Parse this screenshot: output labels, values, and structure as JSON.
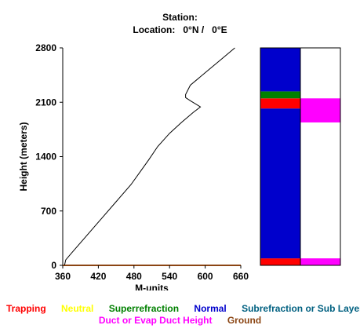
{
  "header": {
    "station_line": "Station:",
    "location_line": "Location:   0°N /   0°E"
  },
  "chart_data": {
    "type": "line",
    "title": "",
    "xlabel": "M-units",
    "ylabel": "Height (meters)",
    "xlim": [
      360,
      660
    ],
    "ylim": [
      0,
      2800
    ],
    "xticks": [
      "360",
      "420",
      "480",
      "540",
      "600",
      "660"
    ],
    "yticks": [
      "0",
      "700",
      "1400",
      "2100",
      "2800"
    ],
    "series": [
      {
        "color": "#000000",
        "x": [
          363,
          365,
          375,
          400,
          425,
          450,
          475,
          490,
          505,
          520,
          540,
          560,
          580,
          592,
          575,
          567,
          567,
          575,
          600,
          625,
          650
        ],
        "y": [
          0,
          70,
          160,
          380,
          600,
          820,
          1040,
          1200,
          1360,
          1530,
          1700,
          1840,
          1970,
          2040,
          2120,
          2160,
          2200,
          2320,
          2480,
          2640,
          2800
        ]
      }
    ],
    "ground": {
      "height": 0,
      "color": "#8b4513"
    },
    "bars": {
      "ylim": [
        0,
        2800
      ],
      "left_column": [
        {
          "from": 0,
          "to": 90,
          "type": "Trapping"
        },
        {
          "from": 90,
          "to": 2020,
          "type": "Normal"
        },
        {
          "from": 2020,
          "to": 2150,
          "type": "Trapping"
        },
        {
          "from": 2150,
          "to": 2240,
          "type": "Superrefraction"
        },
        {
          "from": 2240,
          "to": 2800,
          "type": "Normal"
        }
      ],
      "right_column": [
        {
          "from": 0,
          "to": 90,
          "type": "Duct or Evap Duct Height"
        },
        {
          "from": 1840,
          "to": 2150,
          "type": "Duct or Evap Duct Height"
        }
      ]
    }
  },
  "legend": {
    "row1": [
      {
        "label": "Trapping",
        "color": "#ff0000"
      },
      {
        "label": "Neutral",
        "color": "#ffff00"
      },
      {
        "label": "Superrefraction",
        "color": "#008000"
      },
      {
        "label": "Normal",
        "color": "#0000cc"
      },
      {
        "label": "Subrefraction or Sub Layer",
        "color": "#006080"
      }
    ],
    "row2": [
      {
        "label": "Duct or Evap Duct Height",
        "color": "#ff00ff"
      },
      {
        "label": "Ground",
        "color": "#8b4513"
      }
    ]
  }
}
